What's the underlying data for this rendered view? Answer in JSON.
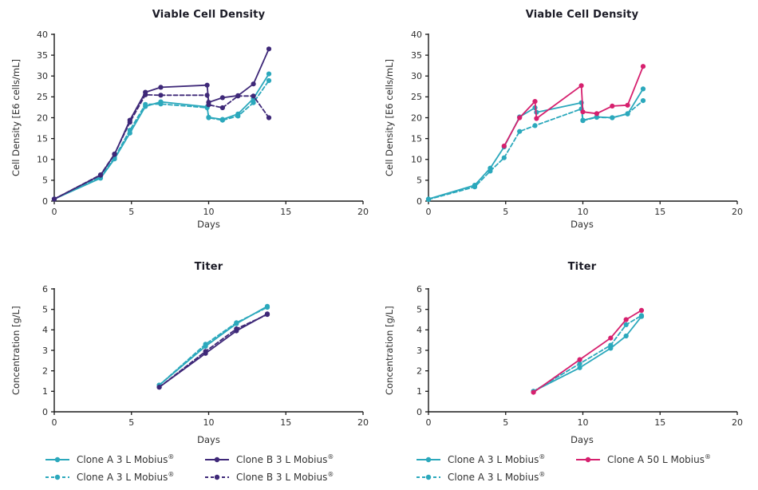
{
  "palette": {
    "teal": "#2BA8BC",
    "purple": "#3E2878",
    "magenta": "#D6206E",
    "axis": "#1A1A1A",
    "text": "#2E2E2E",
    "title": "#1B1B26"
  },
  "chart_data": [
    {
      "id": "viable-cell-density-clone-a-vs-b",
      "type": "line",
      "title": "Viable Cell Density",
      "xlabel": "Days",
      "ylabel": "Cell Density [E6 cells/mL]",
      "xlim": [
        0,
        20
      ],
      "ylim": [
        0,
        40
      ],
      "xticks": [
        0,
        5,
        10,
        15,
        20
      ],
      "yticks": [
        0,
        5,
        10,
        15,
        20,
        25,
        30,
        35,
        40
      ],
      "grid": false,
      "legend_position": "bottom",
      "series": [
        {
          "name": "Clone A 3 L Mobius®",
          "color": "teal",
          "dash": false,
          "x": [
            0,
            3,
            3.9,
            4.9,
            5.9,
            6.9,
            9.9,
            10,
            10.9,
            11.9,
            12.9,
            13.9
          ],
          "y": [
            0.5,
            5.5,
            10.1,
            16.3,
            22.7,
            23.8,
            22.6,
            20.1,
            19.6,
            20.9,
            24.6,
            30.5
          ]
        },
        {
          "name": "Clone A 3 L Mobius®",
          "color": "teal",
          "dash": true,
          "x": [
            0,
            3,
            3.9,
            4.9,
            5.9,
            6.9,
            9.9,
            10,
            10.9,
            11.9,
            12.9,
            13.9
          ],
          "y": [
            0.5,
            5.8,
            10.4,
            17.0,
            23.2,
            23.3,
            22.4,
            20.0,
            19.4,
            20.4,
            23.6,
            28.9
          ]
        },
        {
          "name": "Clone B 3 L Mobius®",
          "color": "purple",
          "dash": false,
          "x": [
            0,
            3,
            3.9,
            4.9,
            5.9,
            6.9,
            9.9,
            10,
            10.9,
            11.9,
            12.9,
            13.9
          ],
          "y": [
            0.5,
            6.2,
            11.2,
            19.4,
            26.1,
            27.3,
            27.8,
            23.7,
            24.8,
            25.3,
            28.1,
            36.5
          ]
        },
        {
          "name": "Clone B 3 L Mobius®",
          "color": "purple",
          "dash": true,
          "x": [
            0,
            3,
            3.9,
            4.9,
            5.9,
            6.9,
            9.9,
            10,
            10.9,
            11.9,
            12.9,
            13.9
          ],
          "y": [
            0.5,
            6.3,
            11.3,
            18.9,
            25.5,
            25.4,
            25.4,
            23.1,
            22.4,
            25.2,
            25.2,
            20.0
          ]
        }
      ]
    },
    {
      "id": "viable-cell-density-scale-comparison",
      "type": "line",
      "title": "Viable Cell Density",
      "xlabel": "Days",
      "ylabel": "Cell Density [E6 cells/mL]",
      "xlim": [
        0,
        20
      ],
      "ylim": [
        0,
        40
      ],
      "xticks": [
        0,
        5,
        10,
        15,
        20
      ],
      "yticks": [
        0,
        5,
        10,
        15,
        20,
        25,
        30,
        35,
        40
      ],
      "grid": false,
      "legend_position": "bottom",
      "series": [
        {
          "name": "Clone A 3 L Mobius®",
          "color": "teal",
          "dash": true,
          "x": [
            0,
            3,
            4,
            4.9,
            5.9,
            6.9,
            9.9,
            10,
            10.9,
            11.9,
            12.9,
            13.9
          ],
          "y": [
            0.4,
            3.4,
            7.2,
            10.4,
            16.7,
            18.1,
            22.1,
            19.3,
            20.1,
            20.0,
            21.0,
            24.1
          ]
        },
        {
          "name": "Clone A 3 L Mobius®",
          "color": "teal",
          "dash": false,
          "x": [
            0,
            3,
            4,
            4.9,
            5.9,
            6.9,
            7.0,
            9.9,
            10,
            10.9,
            11.9,
            12.9,
            13.9
          ],
          "y": [
            0.5,
            3.8,
            7.9,
            13.0,
            20.2,
            22.4,
            21.3,
            23.6,
            19.4,
            20.2,
            20.0,
            20.9,
            26.9
          ]
        },
        {
          "name": "Clone A 50 L Mobius®",
          "color": "magenta",
          "dash": false,
          "x": [
            4.9,
            5.9,
            6.9,
            7.0,
            9.9,
            10,
            10.9,
            11.9,
            12.9,
            13.9
          ],
          "y": [
            13.2,
            20.0,
            23.9,
            19.8,
            27.7,
            21.4,
            21.0,
            22.8,
            23.0,
            32.3
          ]
        }
      ]
    },
    {
      "id": "titer-clone-a-vs-b",
      "type": "line",
      "title": "Titer",
      "xlabel": "Days",
      "ylabel": "Concentration [g/L]",
      "xlim": [
        0,
        20
      ],
      "ylim": [
        0,
        6
      ],
      "xticks": [
        0,
        5,
        10,
        15,
        20
      ],
      "yticks": [
        0,
        1,
        2,
        3,
        4,
        5,
        6
      ],
      "grid": false,
      "legend_position": "bottom",
      "series": [
        {
          "name": "Clone A 3 L Mobius®",
          "color": "teal",
          "dash": false,
          "x": [
            6.8,
            9.8,
            11.8,
            13.8
          ],
          "y": [
            1.3,
            3.2,
            4.3,
            5.15
          ]
        },
        {
          "name": "Clone A 3 L Mobius®",
          "color": "teal",
          "dash": true,
          "x": [
            6.8,
            9.8,
            11.8,
            13.8
          ],
          "y": [
            1.3,
            3.3,
            4.35,
            5.1
          ]
        },
        {
          "name": "Clone B 3 L Mobius®",
          "color": "purple",
          "dash": false,
          "x": [
            6.8,
            9.8,
            11.8,
            13.8
          ],
          "y": [
            1.2,
            2.85,
            3.95,
            4.78
          ]
        },
        {
          "name": "Clone B 3 L Mobius®",
          "color": "purple",
          "dash": true,
          "x": [
            6.8,
            9.8,
            11.8,
            13.8
          ],
          "y": [
            1.2,
            2.95,
            4.05,
            4.75
          ]
        }
      ]
    },
    {
      "id": "titer-scale-comparison",
      "type": "line",
      "title": "Titer",
      "xlabel": "Days",
      "ylabel": "Concentration [g/L]",
      "xlim": [
        0,
        20
      ],
      "ylim": [
        0,
        6
      ],
      "xticks": [
        0,
        5,
        10,
        15,
        20
      ],
      "yticks": [
        0,
        1,
        2,
        3,
        4,
        5,
        6
      ],
      "grid": false,
      "legend_position": "bottom",
      "series": [
        {
          "name": "Clone A 3 L Mobius®",
          "color": "teal",
          "dash": true,
          "x": [
            6.8,
            9.8,
            11.8,
            12.8,
            13.8
          ],
          "y": [
            1.0,
            2.35,
            3.25,
            4.25,
            4.7
          ]
        },
        {
          "name": "Clone A 3 L Mobius®",
          "color": "teal",
          "dash": false,
          "x": [
            6.8,
            9.8,
            11.8,
            12.8,
            13.8
          ],
          "y": [
            1.0,
            2.15,
            3.1,
            3.7,
            4.65
          ]
        },
        {
          "name": "Clone A 50 L Mobius®",
          "color": "magenta",
          "dash": false,
          "x": [
            6.8,
            9.8,
            11.8,
            12.8,
            13.8
          ],
          "y": [
            0.95,
            2.55,
            3.6,
            4.5,
            4.95
          ]
        }
      ]
    }
  ],
  "legends": [
    {
      "items": [
        {
          "label": "Clone A 3 L Mobius®",
          "color": "teal",
          "dash": false
        },
        {
          "label": "Clone B 3 L Mobius®",
          "color": "purple",
          "dash": false
        },
        {
          "label": "Clone A 3 L Mobius®",
          "color": "teal",
          "dash": true
        },
        {
          "label": "Clone B 3 L Mobius®",
          "color": "purple",
          "dash": true
        }
      ]
    },
    {
      "items": [
        {
          "label": "Clone A 3 L Mobius®",
          "color": "teal",
          "dash": false
        },
        {
          "label": "Clone A 50 L Mobius®",
          "color": "magenta",
          "dash": false
        },
        {
          "label": "Clone A 3 L Mobius®",
          "color": "teal",
          "dash": true
        }
      ]
    }
  ]
}
